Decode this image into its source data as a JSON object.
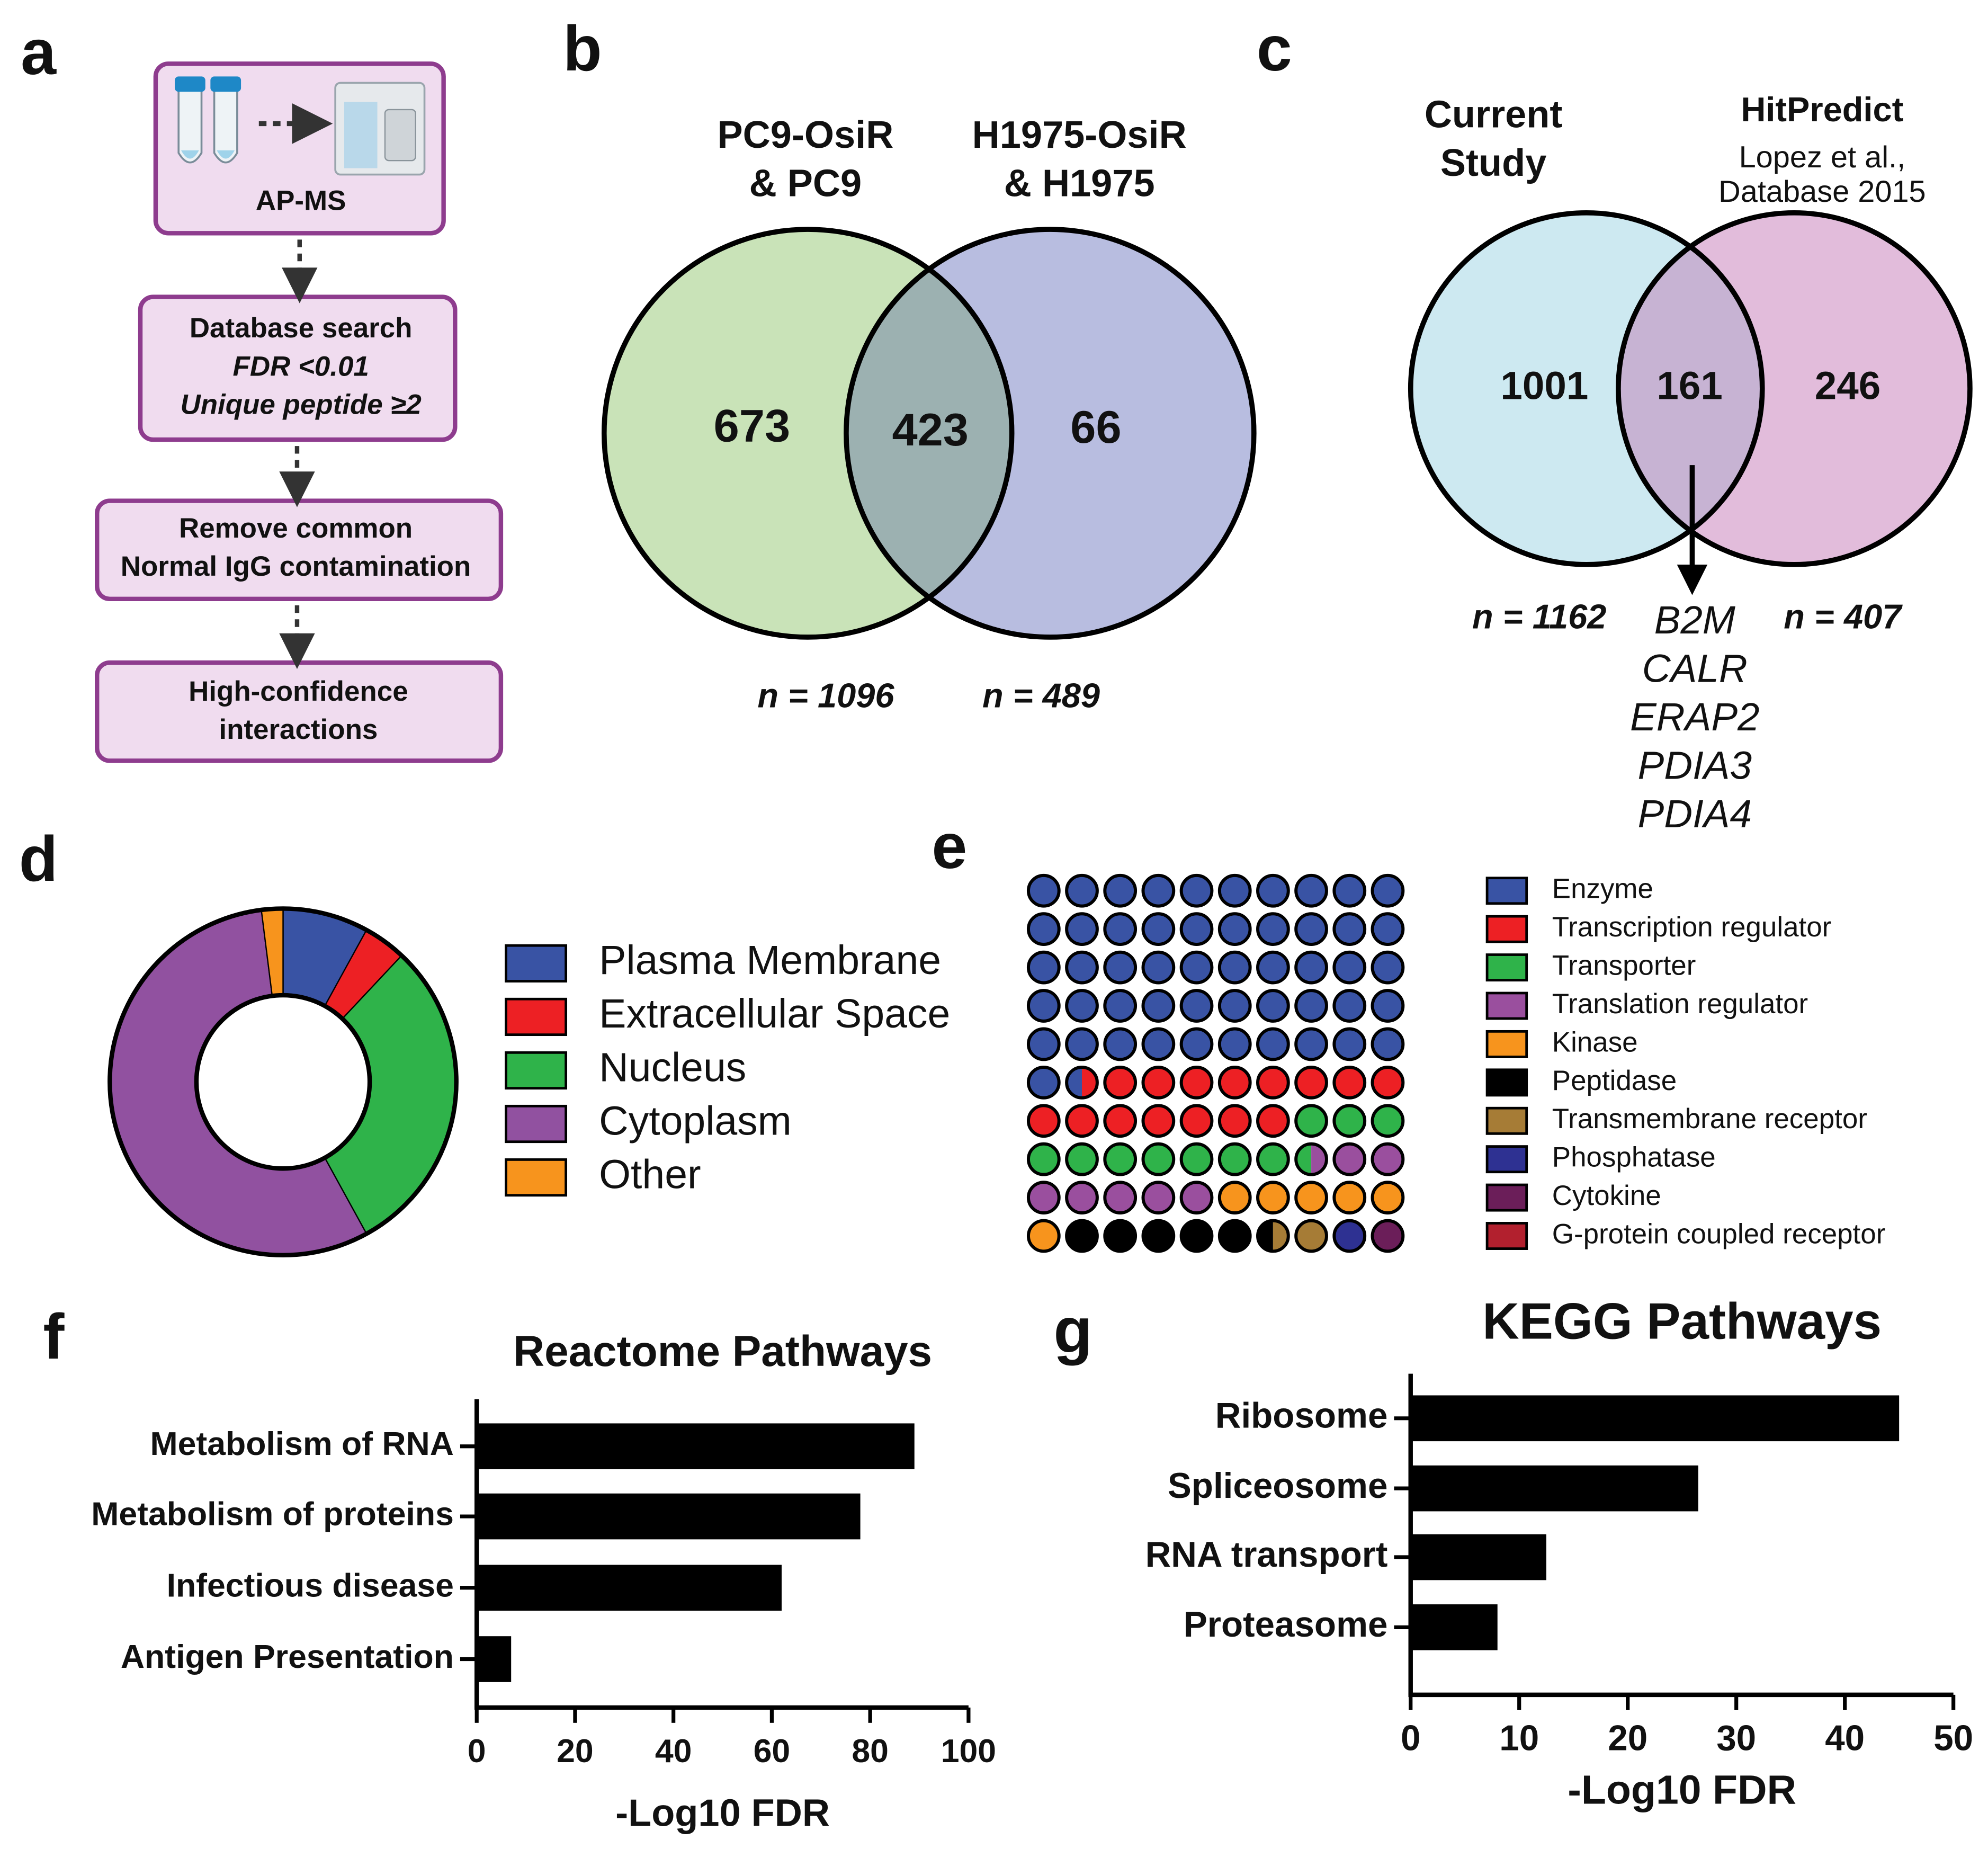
{
  "panel_labels": [
    "a",
    "b",
    "c",
    "d",
    "e",
    "f",
    "g"
  ],
  "flowchart": {
    "steps": [
      [
        "AP-MS"
      ],
      [
        "Database search",
        "FDR <0.01",
        "Unique peptide ≥2"
      ],
      [
        "Remove common",
        "Normal IgG contamination"
      ],
      [
        "High-confidence",
        "interactions"
      ]
    ]
  },
  "chart_data": [
    {
      "type": "venn",
      "sets": [
        {
          "name": [
            "PC9-OsiR",
            "& PC9"
          ],
          "color": "#c9e3b8",
          "total": "n = 1096"
        },
        {
          "name": [
            "H1975-OsiR",
            "& H1975"
          ],
          "color": "#b8bde0",
          "total": "n = 489"
        }
      ],
      "overlap_color": "#9cb1b1",
      "values": [
        673,
        423,
        66
      ]
    },
    {
      "type": "venn",
      "sets": [
        {
          "name": [
            "Current",
            "Study"
          ],
          "color": "#cde9f1",
          "total": "n = 1162"
        },
        {
          "name": [
            "HitPredict"
          ],
          "subtitle": [
            "Lopez et al.,",
            "Database 2015"
          ],
          "color": "#e2bcdb",
          "total": "n = 407"
        }
      ],
      "overlap_color": "#c7b3d3",
      "values": [
        1001,
        161,
        246
      ],
      "overlap_members": [
        "B2M",
        "CALR",
        "ERAP2",
        "PDIA3",
        "PDIA4"
      ]
    },
    {
      "type": "pie",
      "categories": [
        "Plasma Membrane",
        "Extracellular Space",
        "Nucleus",
        "Cytoplasm",
        "Other"
      ],
      "values": [
        8,
        4,
        30,
        56,
        2
      ],
      "colors": [
        "#3953a4",
        "#ed2024",
        "#2fb34a",
        "#9151a0",
        "#f7941d"
      ]
    },
    {
      "type": "waffle",
      "categories": [
        "Enzyme",
        "Transcription regulator",
        "Transporter",
        "Translation regulator",
        "Kinase",
        "Peptidase",
        "Transmembrane receptor",
        "Phosphatase",
        "Cytokine",
        "G-protein coupled receptor"
      ],
      "values": [
        51.5,
        15.5,
        10.5,
        7.5,
        6,
        5.5,
        1.5,
        1,
        1,
        0
      ],
      "colors": [
        "#3953a4",
        "#ed2024",
        "#2fb34a",
        "#9a4f9e",
        "#f7941d",
        "#000000",
        "#a67c36",
        "#2e3192",
        "#6b1e59",
        "#b2202e"
      ]
    },
    {
      "type": "bar",
      "title": "Reactome Pathways",
      "xlabel": "-Log10 FDR",
      "categories": [
        "Metabolism of RNA",
        "Metabolism of proteins",
        "Infectious disease",
        "Antigen Presentation"
      ],
      "values": [
        89,
        78,
        62,
        7
      ],
      "color": "#000000",
      "xlim": [
        0,
        100
      ],
      "xticks": [
        0,
        20,
        40,
        60,
        80,
        100
      ]
    },
    {
      "type": "bar",
      "title": "KEGG Pathways",
      "xlabel": "-Log10 FDR",
      "categories": [
        "Ribosome",
        "Spliceosome",
        "RNA transport",
        "Proteasome"
      ],
      "values": [
        45,
        26.5,
        12.5,
        8
      ],
      "color": "#000000",
      "xlim": [
        0,
        50
      ],
      "xticks": [
        0,
        10,
        20,
        30,
        40,
        50
      ]
    }
  ]
}
